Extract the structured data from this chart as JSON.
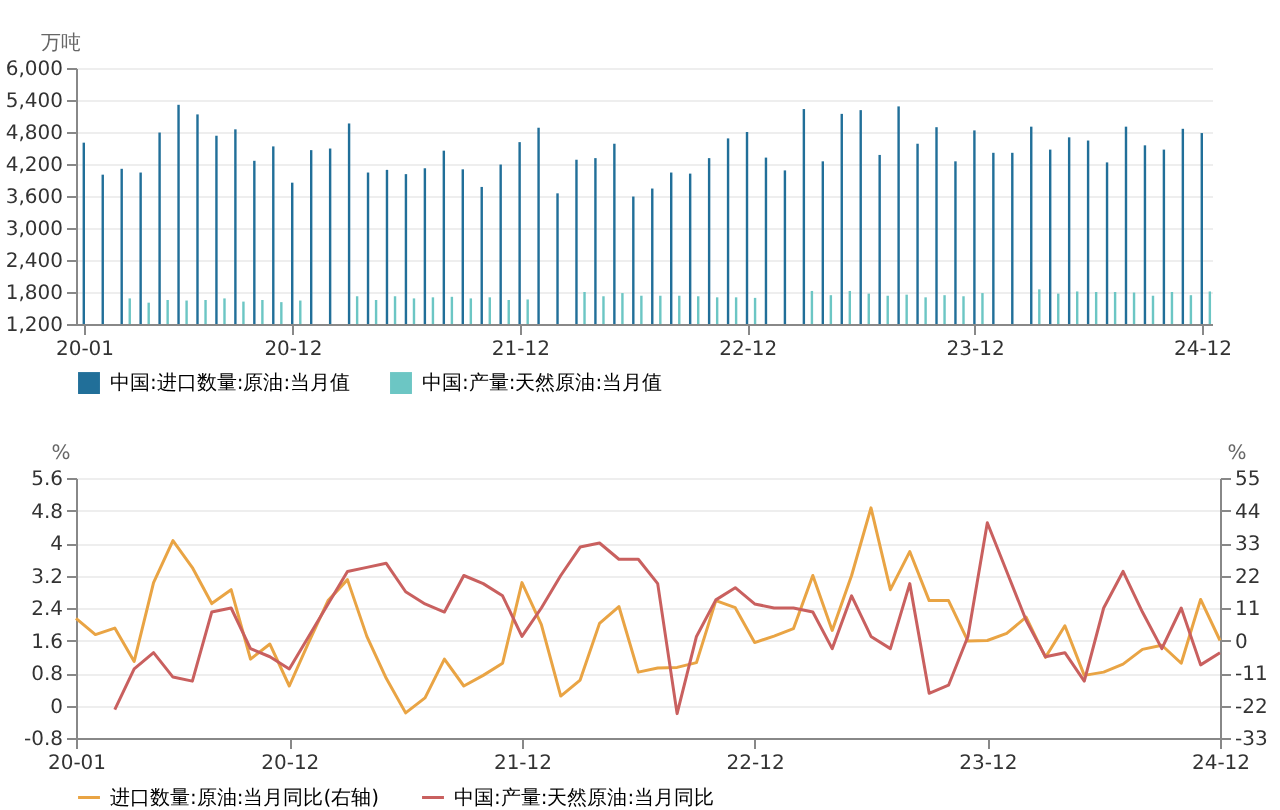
{
  "chart_data": [
    {
      "type": "bar",
      "ylabel": "万吨",
      "categories": [
        "20-01",
        null,
        null,
        null,
        null,
        null,
        null,
        null,
        null,
        null,
        null,
        "20-12",
        null,
        null,
        null,
        null,
        null,
        null,
        null,
        null,
        null,
        null,
        null,
        "21-12",
        null,
        null,
        null,
        null,
        null,
        null,
        null,
        null,
        null,
        null,
        null,
        "22-12",
        null,
        null,
        null,
        null,
        null,
        null,
        null,
        null,
        null,
        null,
        null,
        "23-12",
        null,
        null,
        null,
        null,
        null,
        null,
        null,
        null,
        null,
        null,
        null,
        "24-12"
      ],
      "series": [
        {
          "name": "中国:进口数量:原油:当月值",
          "color": "#216f99",
          "values": [
            4600,
            4000,
            4110,
            4040,
            4790,
            5310,
            5130,
            4730,
            4850,
            4260,
            4530,
            3850,
            4460,
            4490,
            4960,
            4040,
            4090,
            4010,
            4120,
            4450,
            4100,
            3770,
            4190,
            4610,
            4880,
            3650,
            4280,
            4310,
            4580,
            3590,
            3740,
            4040,
            4020,
            4310,
            4680,
            4800,
            4320,
            4080,
            5230,
            4250,
            5140,
            5210,
            4370,
            5280,
            4580,
            4890,
            4250,
            4830,
            4410,
            4410,
            4900,
            4470,
            4700,
            4640,
            4230,
            4900,
            4550,
            4470,
            4860,
            4780
          ]
        },
        {
          "name": "中国:产量:天然原油:当月值",
          "color": "#6cc6c4",
          "values": [
            null,
            null,
            1680,
            1600,
            1650,
            1640,
            1650,
            1680,
            1620,
            1650,
            1610,
            1640,
            null,
            null,
            1720,
            1650,
            1720,
            1680,
            1700,
            1710,
            1680,
            1700,
            1650,
            1660,
            null,
            null,
            1800,
            1720,
            1780,
            1730,
            1730,
            1730,
            1720,
            1700,
            1700,
            1690,
            null,
            null,
            1820,
            1740,
            1820,
            1770,
            1730,
            1750,
            1700,
            1740,
            1720,
            1780,
            null,
            null,
            1850,
            1770,
            1810,
            1800,
            1800,
            1790,
            1730,
            1800,
            1740,
            1810
          ]
        }
      ],
      "ylim": [
        1200,
        6000
      ],
      "yticks": [
        {
          "value": 1200,
          "label": "1,200"
        },
        {
          "value": 1800,
          "label": "1,800"
        },
        {
          "value": 2400,
          "label": "2,400"
        },
        {
          "value": 3000,
          "label": "3,000"
        },
        {
          "value": 3600,
          "label": "3,600"
        },
        {
          "value": 4200,
          "label": "4,200"
        },
        {
          "value": 4800,
          "label": "4,800"
        },
        {
          "value": 5400,
          "label": "5,400"
        },
        {
          "value": 6000,
          "label": "6,000"
        }
      ],
      "grid": "y",
      "legend": "bottom"
    },
    {
      "type": "line",
      "ylabel": "%",
      "y2label": "%",
      "categories": [
        "20-01",
        null,
        null,
        null,
        null,
        null,
        null,
        null,
        null,
        null,
        null,
        "20-12",
        null,
        null,
        null,
        null,
        null,
        null,
        null,
        null,
        null,
        null,
        null,
        "21-12",
        null,
        null,
        null,
        null,
        null,
        null,
        null,
        null,
        null,
        null,
        null,
        "22-12",
        null,
        null,
        null,
        null,
        null,
        null,
        null,
        null,
        null,
        null,
        null,
        "23-12",
        null,
        null,
        null,
        null,
        null,
        null,
        null,
        null,
        null,
        null,
        null,
        "24-12"
      ],
      "series": [
        {
          "name": "进口数量:原油:当月同比(右轴)",
          "color": "#e9a444",
          "axis": "y2",
          "values": [
            7.5,
            2.0,
            4.2,
            -7.1,
            19.6,
            33.8,
            24.7,
            12.5,
            17.2,
            -6.3,
            -1.2,
            -15.4,
            -0.6,
            13.5,
            20.6,
            1.4,
            -12.8,
            -24.5,
            -19.4,
            -6.3,
            -15.4,
            -11.8,
            -7.7,
            19.6,
            5.4,
            -18.8,
            -13.4,
            5.8,
            11.5,
            -10.7,
            -9.3,
            -9.1,
            -7.5,
            13.5,
            11.1,
            -0.7,
            1.5,
            4.0,
            22.0,
            3.4,
            22.0,
            44.9,
            17.2,
            30.1,
            13.5,
            13.5,
            -0.2,
            0,
            2.4,
            7.9,
            -5.7,
            5.0,
            -11.8,
            -10.7,
            -8,
            -3,
            -1.6,
            -7.7,
            13.9,
            0
          ]
        },
        {
          "name": "中国:产量:天然原油:当月同比",
          "color": "#c9605f",
          "values": [
            null,
            null,
            -0.1,
            0.9,
            1.3,
            0.7,
            0.6,
            2.3,
            2.4,
            1.4,
            1.2,
            0.9,
            1.7,
            2.5,
            3.3,
            3.4,
            3.5,
            2.8,
            2.5,
            2.3,
            3.2,
            3.0,
            2.7,
            1.7,
            2.4,
            3.2,
            3.9,
            4.0,
            3.6,
            3.6,
            3.0,
            -0.2,
            1.7,
            2.6,
            2.9,
            2.5,
            2.4,
            2.4,
            2.3,
            1.4,
            2.7,
            1.7,
            1.4,
            3.0,
            0.3,
            0.5,
            1.7,
            4.5,
            3.3,
            2.1,
            1.2,
            1.3,
            0.6,
            2.4,
            3.3,
            2.3,
            1.4,
            2.4,
            1.0,
            1.3
          ]
        }
      ],
      "ylim": [
        -0.8,
        5.6
      ],
      "yticks": [
        -0.8,
        0,
        0.8,
        1.6,
        2.4,
        3.2,
        4,
        4.8,
        5.6
      ],
      "y2lim": [
        -33,
        55
      ],
      "y2ticks": [
        -33,
        -22,
        -11,
        0,
        11,
        22,
        33,
        44,
        55
      ],
      "grid": "y",
      "legend": "bottom"
    }
  ]
}
